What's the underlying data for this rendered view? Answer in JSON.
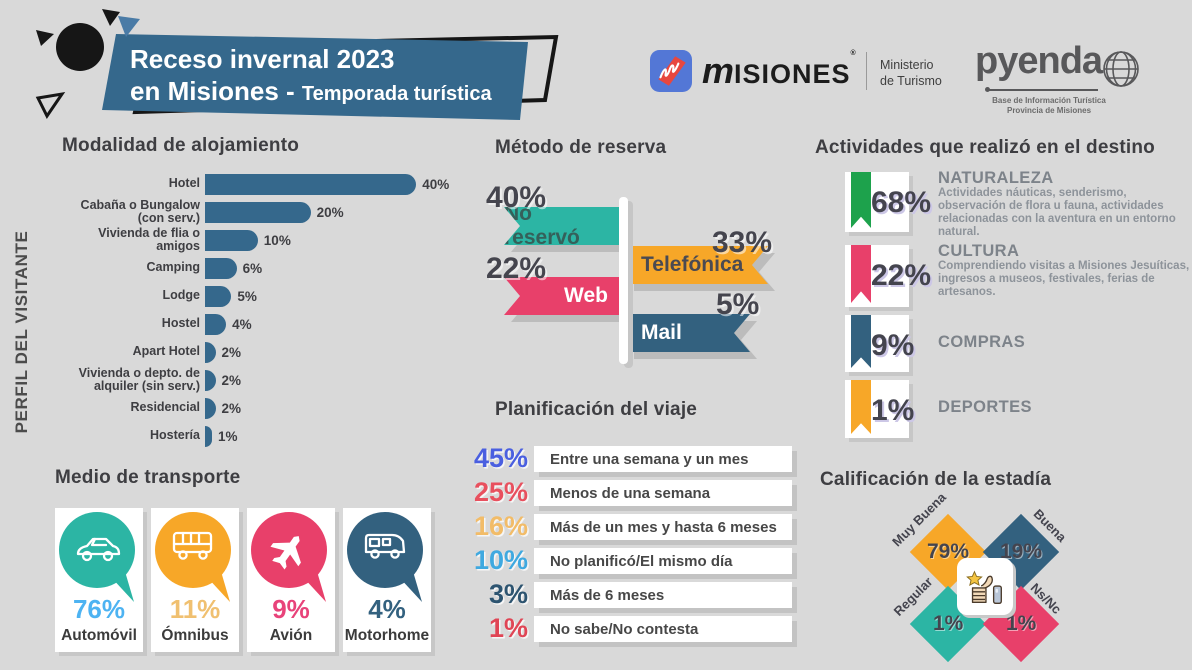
{
  "header": {
    "title_line1": "Receso invernal 2023",
    "title_line2_strong": "en Misiones - ",
    "title_line2_rest": "Temporada turística",
    "banner_color": "#35688c"
  },
  "logos": {
    "misiones": {
      "wordmark_m": "m",
      "wordmark_rest": "ISIONES",
      "trademark": "®",
      "ministry_line1": "Ministerio",
      "ministry_line2": "de Turismo"
    },
    "pyenda": {
      "name": "pyenda",
      "sub_line1": "Base de Información Turística",
      "sub_line2": "Provincia de Misiones"
    }
  },
  "sidebar_label": "PERFIL DEL VISITANTE",
  "modalidad": {
    "title": "Modalidad de alojamiento",
    "bar_color": "#35688c",
    "items": [
      {
        "lines": [
          "Hotel"
        ],
        "value": 40,
        "display": "40%"
      },
      {
        "lines": [
          "Cabaña o Bungalow",
          "(con serv.)"
        ],
        "value": 20,
        "display": "20%"
      },
      {
        "lines": [
          "Vivienda de flia o",
          "amigos"
        ],
        "value": 10,
        "display": "10%"
      },
      {
        "lines": [
          "Camping"
        ],
        "value": 6,
        "display": "6%"
      },
      {
        "lines": [
          "Lodge"
        ],
        "value": 5,
        "display": "5%"
      },
      {
        "lines": [
          "Hostel"
        ],
        "value": 4,
        "display": "4%"
      },
      {
        "lines": [
          "Apart Hotel"
        ],
        "value": 2,
        "display": "2%"
      },
      {
        "lines": [
          "Vivienda o depto. de",
          "alquiler (sin serv.)"
        ],
        "value": 2,
        "display": "2%"
      },
      {
        "lines": [
          "Residencial"
        ],
        "value": 2,
        "display": "2%"
      },
      {
        "lines": [
          "Hostería"
        ],
        "value": 1,
        "display": "1%"
      }
    ]
  },
  "reserva": {
    "title": "Método de reserva",
    "items": [
      {
        "label": "No reservó",
        "pct": "40%",
        "color": "#2cb5a4",
        "text_color": "#35605a",
        "side": "left"
      },
      {
        "label": "Telefónica",
        "pct": "33%",
        "color": "#f7a728",
        "text_color": "#4a4a52",
        "side": "right"
      },
      {
        "label": "Web",
        "pct": "22%",
        "color": "#e8406a",
        "text_color": "#ffffff",
        "side": "left"
      },
      {
        "label": "Mail",
        "pct": "5%",
        "color": "#33617f",
        "text_color": "#ffffff",
        "side": "right"
      }
    ]
  },
  "actividades": {
    "title": "Actividades que realizó en el destino",
    "items": [
      {
        "name": "NATURALEZA",
        "pct": "68%",
        "color": "#1da24c",
        "desc": "Actividades náuticas, senderismo, observación de flora u fauna, actividades relacionadas con la aventura en un entorno natural."
      },
      {
        "name": "CULTURA",
        "pct": "22%",
        "color": "#e8406a",
        "desc": "Comprendiendo visitas a Misiones Jesuíticas, ingresos a museos, festivales, ferias de artesanos."
      },
      {
        "name": "COMPRAS",
        "pct": "9%",
        "color": "#33617f",
        "desc": ""
      },
      {
        "name": "DEPORTES",
        "pct": "1%",
        "color": "#f7a728",
        "desc": ""
      }
    ]
  },
  "transporte": {
    "title": "Medio de transporte",
    "items": [
      {
        "label": "Automóvil",
        "pct": "76%",
        "bubble_color": "#2cb5a4",
        "pct_color": "#4db3f2",
        "icon": "car-icon"
      },
      {
        "label": "Ómnibus",
        "pct": "11%",
        "bubble_color": "#f7a728",
        "pct_color": "#f0c070",
        "icon": "bus-icon"
      },
      {
        "label": "Avión",
        "pct": "9%",
        "bubble_color": "#e8406a",
        "pct_color": "#e8437a",
        "icon": "plane-icon"
      },
      {
        "label": "Motorhome",
        "pct": "4%",
        "bubble_color": "#33617f",
        "pct_color": "#33617f",
        "icon": "motorhome-icon"
      }
    ]
  },
  "planificacion": {
    "title": "Planificación del viaje",
    "items": [
      {
        "pct": "45%",
        "color": "#4a5fe0",
        "label": "Entre una semana y un mes"
      },
      {
        "pct": "25%",
        "color": "#e8505e",
        "label": "Menos de una semana"
      },
      {
        "pct": "16%",
        "color": "#f2bc68",
        "label": "Más de un mes y hasta 6 meses"
      },
      {
        "pct": "10%",
        "color": "#3fa9e0",
        "label": "No planificó/El mismo día"
      },
      {
        "pct": "3%",
        "color": "#2d5470",
        "label": "Más de 6 meses"
      },
      {
        "pct": "1%",
        "color": "#e04555",
        "label": "No sabe/No contesta"
      }
    ]
  },
  "calificacion": {
    "title": "Calificación de la estadía",
    "items": [
      {
        "label": "Muy Buena",
        "pct": "79%",
        "color": "#f7a728",
        "pos": "tl"
      },
      {
        "label": "Buena",
        "pct": "19%",
        "color": "#33617f",
        "pos": "tr"
      },
      {
        "label": "Regular",
        "pct": "1%",
        "color": "#2cb5a4",
        "pos": "bl"
      },
      {
        "label": "Ns/Nc",
        "pct": "1%",
        "color": "#e8406a",
        "pos": "br"
      }
    ]
  },
  "chart_data": [
    {
      "type": "bar",
      "title": "Modalidad de alojamiento",
      "unit": "%",
      "categories": [
        "Hotel",
        "Cabaña o Bungalow (con serv.)",
        "Vivienda de flia o amigos",
        "Camping",
        "Lodge",
        "Hostel",
        "Apart Hotel",
        "Vivienda o depto. de alquiler (sin serv.)",
        "Residencial",
        "Hostería"
      ],
      "values": [
        40,
        20,
        10,
        6,
        5,
        4,
        2,
        2,
        2,
        1
      ]
    },
    {
      "type": "bar",
      "title": "Método de reserva",
      "unit": "%",
      "categories": [
        "No reservó",
        "Telefónica",
        "Web",
        "Mail"
      ],
      "values": [
        40,
        33,
        22,
        5
      ]
    },
    {
      "type": "bar",
      "title": "Actividades que realizó en el destino",
      "unit": "%",
      "categories": [
        "Naturaleza",
        "Cultura",
        "Compras",
        "Deportes"
      ],
      "values": [
        68,
        22,
        9,
        1
      ]
    },
    {
      "type": "bar",
      "title": "Medio de transporte",
      "unit": "%",
      "categories": [
        "Automóvil",
        "Ómnibus",
        "Avión",
        "Motorhome"
      ],
      "values": [
        76,
        11,
        9,
        4
      ]
    },
    {
      "type": "bar",
      "title": "Planificación del viaje",
      "unit": "%",
      "categories": [
        "Entre una semana y un mes",
        "Menos de una semana",
        "Más de un mes y hasta 6 meses",
        "No planificó/El mismo día",
        "Más de 6 meses",
        "No sabe/No contesta"
      ],
      "values": [
        45,
        25,
        16,
        10,
        3,
        1
      ]
    },
    {
      "type": "pie",
      "title": "Calificación de la estadía",
      "unit": "%",
      "categories": [
        "Muy Buena",
        "Buena",
        "Regular",
        "Ns/Nc"
      ],
      "values": [
        79,
        19,
        1,
        1
      ]
    }
  ]
}
